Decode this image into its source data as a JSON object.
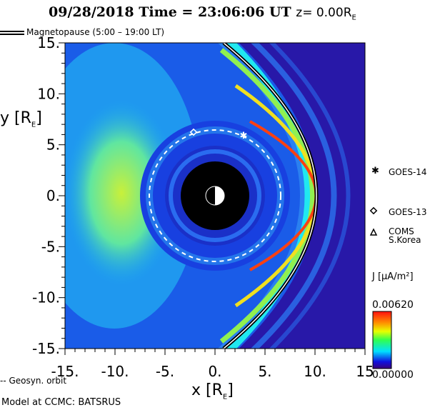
{
  "header": {
    "date": "09/28/2018",
    "time_label": "Time = 23:06:06 UT",
    "z_label": "z= 0.00R",
    "z_sub": "E"
  },
  "legend": {
    "magnetopause": "Magnetopause (5:00 – 19:00 LT)",
    "geosyn": "-- Geosyn. orbit",
    "model": "Model at CCMC: BATSRUS"
  },
  "satellites": [
    {
      "name": "GOES-14",
      "marker": "asterisk",
      "x": 2.9,
      "y": 5.9
    },
    {
      "name": "GOES-13",
      "marker": "diamond",
      "x": -2.2,
      "y": 6.2
    },
    {
      "name": "COMS S.Korea",
      "marker": "triangle"
    }
  ],
  "colorbar": {
    "label": "J [μA/m²]",
    "max": "0.00620",
    "min": "0.00000"
  },
  "chart_data": {
    "type": "heatmap",
    "title": "09/28/2018 Time = 23:06:06 UT z= 0.00RE",
    "xlabel": "x [RE]",
    "ylabel": "y [RE]",
    "xlim": [
      -15,
      15
    ],
    "ylim": [
      -15,
      15
    ],
    "xticks": [
      "-15.",
      "-10.",
      "-5.",
      "0.",
      "5.",
      "10.",
      "15"
    ],
    "yticks": [
      "15.",
      "10.",
      "5.",
      "0.",
      "-5.",
      "-10.",
      "-15."
    ],
    "colorbar_range": [
      0.0,
      0.0062
    ],
    "magnetopause_subsolar_x": 10.3,
    "geosync_radius": 6.6,
    "inner_boundary_radius": 3.5
  }
}
